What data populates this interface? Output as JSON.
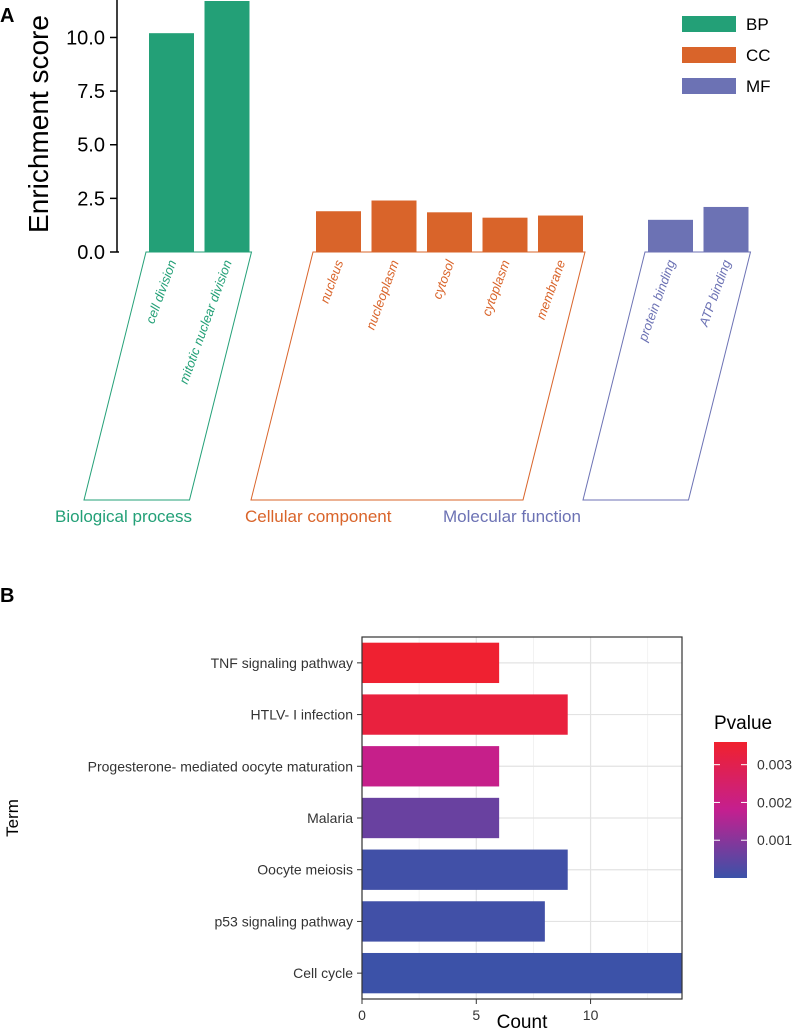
{
  "chart_data": [
    {
      "panel": "A",
      "type": "bar",
      "ylabel": "Enrichment score",
      "ylim": [
        0,
        11.7
      ],
      "yticks": [
        "0.0",
        "2.5",
        "5.0",
        "7.5",
        "10.0"
      ],
      "legend": {
        "placement": "top-right",
        "items": [
          {
            "key": "BP",
            "label": "BP",
            "color": "#23a077"
          },
          {
            "key": "CC",
            "label": "CC",
            "color": "#d9642a"
          },
          {
            "key": "MF",
            "label": "MF",
            "color": "#6c72b4"
          }
        ]
      },
      "groups": [
        {
          "key": "BP",
          "name": "Biological process",
          "terms": [
            "cell division",
            "mitotic nuclear division"
          ],
          "values": [
            10.2,
            11.7
          ]
        },
        {
          "key": "CC",
          "name": "Cellular component",
          "terms": [
            "nucleus",
            "nucleoplasm",
            "cytosol",
            "cytoplasm",
            "membrane"
          ],
          "values": [
            1.9,
            2.4,
            1.85,
            1.6,
            1.7
          ]
        },
        {
          "key": "MF",
          "name": "Molecular function",
          "terms": [
            "protein binding",
            "ATP binding"
          ],
          "values": [
            1.5,
            2.1
          ]
        }
      ]
    },
    {
      "panel": "B",
      "type": "bar",
      "orientation": "horizontal",
      "xlabel": "Count",
      "ylabel": "Term",
      "xlim": [
        0,
        14
      ],
      "xticks": [
        "0",
        "5",
        "10"
      ],
      "categories": [
        "TNF signaling pathway",
        "HTLV- I infection",
        "Progesterone- mediated oocyte maturation",
        "Malaria",
        "Oocyte meiosis",
        "p53 signaling pathway",
        "Cell cycle"
      ],
      "values": [
        6,
        9,
        6,
        6,
        9,
        8,
        14
      ],
      "pvalues": [
        0.00355,
        0.0033,
        0.0019,
        0.0006,
        8e-05,
        8e-05,
        1e-05
      ],
      "colorbar": {
        "title": "Pvalue",
        "range": [
          0,
          0.0036
        ],
        "ticks": [
          "0.001",
          "0.002",
          "0.003"
        ],
        "low_color": "#3b52a8",
        "mid_color": "#c41f8f",
        "high_color": "#f0212e"
      }
    }
  ]
}
